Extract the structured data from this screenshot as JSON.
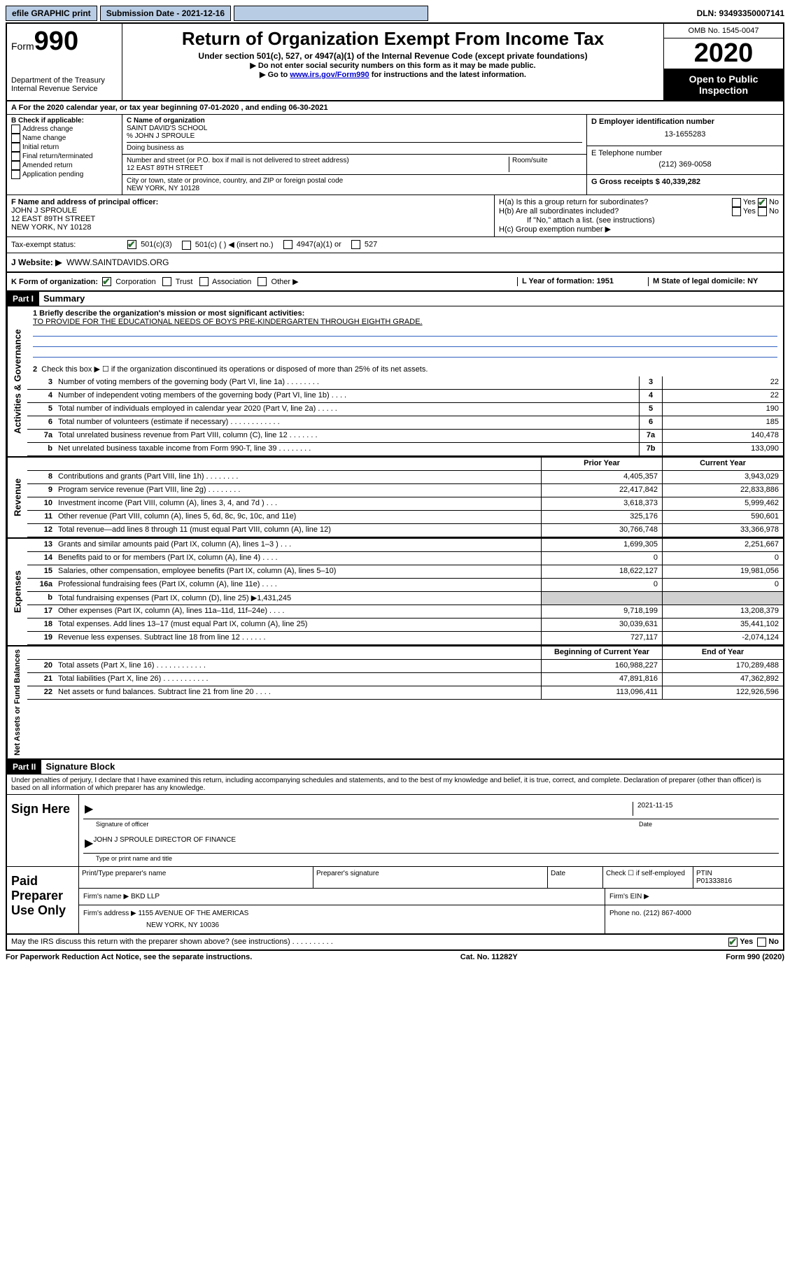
{
  "topbar": {
    "efile": "efile GRAPHIC print",
    "submission_label": "Submission Date - 2021-12-16",
    "dln": "DLN: 93493350007141"
  },
  "header": {
    "form_prefix": "Form",
    "form_number": "990",
    "dept": "Department of the Treasury",
    "irs": "Internal Revenue Service",
    "title": "Return of Organization Exempt From Income Tax",
    "subtitle": "Under section 501(c), 527, or 4947(a)(1) of the Internal Revenue Code (except private foundations)",
    "note1": "▶ Do not enter social security numbers on this form as it may be made public.",
    "note2_pre": "▶ Go to ",
    "note2_link": "www.irs.gov/Form990",
    "note2_post": " for instructions and the latest information.",
    "omb": "OMB No. 1545-0047",
    "year": "2020",
    "open": "Open to Public Inspection"
  },
  "row_a": "A For the 2020 calendar year, or tax year beginning 07-01-2020   , and ending 06-30-2021",
  "section_b": {
    "label": "B Check if applicable:",
    "addr": "Address change",
    "name": "Name change",
    "initial": "Initial return",
    "final": "Final return/terminated",
    "amended": "Amended return",
    "app": "Application pending"
  },
  "section_c": {
    "name_label": "C Name of organization",
    "name": "SAINT DAVID'S SCHOOL",
    "care_of": "% JOHN J SPROULE",
    "dba_label": "Doing business as",
    "street_label": "Number and street (or P.O. box if mail is not delivered to street address)",
    "room_label": "Room/suite",
    "street": "12 EAST 89TH STREET",
    "city_label": "City or town, state or province, country, and ZIP or foreign postal code",
    "city": "NEW YORK, NY  10128"
  },
  "section_d": {
    "ein_label": "D Employer identification number",
    "ein": "13-1655283",
    "phone_label": "E Telephone number",
    "phone": "(212) 369-0058",
    "gross_label": "G Gross receipts $ 40,339,282"
  },
  "section_f": {
    "label": "F  Name and address of principal officer:",
    "name": "JOHN J SPROULE",
    "street": "12 EAST 89TH STREET",
    "city": "NEW YORK, NY  10128"
  },
  "section_h": {
    "ha": "H(a)  Is this a group return for subordinates?",
    "hb": "H(b)  Are all subordinates included?",
    "hb_note": "If \"No,\" attach a list. (see instructions)",
    "hc": "H(c)  Group exemption number ▶",
    "yes": "Yes",
    "no": "No"
  },
  "tax_status": {
    "label": "Tax-exempt status:",
    "c3": "501(c)(3)",
    "c_other": "501(c) (  ) ◀ (insert no.)",
    "a1": "4947(a)(1) or",
    "s527": "527"
  },
  "row_j": {
    "label": "J   Website: ▶",
    "value": "WWW.SAINTDAVIDS.ORG"
  },
  "row_k": {
    "label": "K Form of organization:",
    "corp": "Corporation",
    "trust": "Trust",
    "assoc": "Association",
    "other": "Other ▶",
    "l_label": "L Year of formation: 1951",
    "m_label": "M State of legal domicile: NY"
  },
  "part1": {
    "header": "Part I",
    "title": "Summary",
    "q1": "1  Briefly describe the organization's mission or most significant activities:",
    "mission": "TO PROVIDE FOR THE EDUCATIONAL NEEDS OF BOYS PRE-KINDERGARTEN THROUGH EIGHTH GRADE.",
    "q2": "Check this box ▶ ☐  if the organization discontinued its operations or disposed of more than 25% of its net assets.",
    "side_gov": "Activities & Governance",
    "side_rev": "Revenue",
    "side_exp": "Expenses",
    "side_net": "Net Assets or Fund Balances",
    "lines_gov": [
      {
        "n": "3",
        "d": "Number of voting members of the governing body (Part VI, line 1a)  .   .   .   .   .   .   .   .",
        "b": "3",
        "v": "22"
      },
      {
        "n": "4",
        "d": "Number of independent voting members of the governing body (Part VI, line 1b)   .   .   .   .",
        "b": "4",
        "v": "22"
      },
      {
        "n": "5",
        "d": "Total number of individuals employed in calendar year 2020 (Part V, line 2a)  .   .   .   .   .",
        "b": "5",
        "v": "190"
      },
      {
        "n": "6",
        "d": "Total number of volunteers (estimate if necessary)  .   .   .   .   .   .   .   .   .   .   .   .",
        "b": "6",
        "v": "185"
      },
      {
        "n": "7a",
        "d": "Total unrelated business revenue from Part VIII, column (C), line 12  .   .   .   .   .   .   .",
        "b": "7a",
        "v": "140,478"
      },
      {
        "n": "b",
        "d": "Net unrelated business taxable income from Form 990-T, line 39   .   .   .   .   .   .   .   .",
        "b": "7b",
        "v": "133,090"
      }
    ],
    "hdr_prior": "Prior Year",
    "hdr_current": "Current Year",
    "lines_rev": [
      {
        "n": "8",
        "d": "Contributions and grants (Part VIII, line 1h)  .   .   .   .   .   .   .   .",
        "p": "4,405,357",
        "c": "3,943,029"
      },
      {
        "n": "9",
        "d": "Program service revenue (Part VIII, line 2g)   .   .   .   .   .   .   .   .",
        "p": "22,417,842",
        "c": "22,833,886"
      },
      {
        "n": "10",
        "d": "Investment income (Part VIII, column (A), lines 3, 4, and 7d )  .   .   .",
        "p": "3,618,373",
        "c": "5,999,462"
      },
      {
        "n": "11",
        "d": "Other revenue (Part VIII, column (A), lines 5, 6d, 8c, 9c, 10c, and 11e)",
        "p": "325,176",
        "c": "590,601"
      },
      {
        "n": "12",
        "d": "Total revenue—add lines 8 through 11 (must equal Part VIII, column (A), line 12)",
        "p": "30,766,748",
        "c": "33,366,978"
      }
    ],
    "lines_exp": [
      {
        "n": "13",
        "d": "Grants and similar amounts paid (Part IX, column (A), lines 1–3 )  .   .   .",
        "p": "1,699,305",
        "c": "2,251,667"
      },
      {
        "n": "14",
        "d": "Benefits paid to or for members (Part IX, column (A), line 4)  .   .   .   .",
        "p": "0",
        "c": "0"
      },
      {
        "n": "15",
        "d": "Salaries, other compensation, employee benefits (Part IX, column (A), lines 5–10)",
        "p": "18,622,127",
        "c": "19,981,056"
      },
      {
        "n": "16a",
        "d": "Professional fundraising fees (Part IX, column (A), line 11e)  .   .   .   .",
        "p": "0",
        "c": "0"
      },
      {
        "n": "b",
        "d": "Total fundraising expenses (Part IX, column (D), line 25) ▶1,431,245",
        "p": "",
        "c": "",
        "shade": true
      },
      {
        "n": "17",
        "d": "Other expenses (Part IX, column (A), lines 11a–11d, 11f–24e)  .   .   .   .",
        "p": "9,718,199",
        "c": "13,208,379"
      },
      {
        "n": "18",
        "d": "Total expenses. Add lines 13–17 (must equal Part IX, column (A), line 25)",
        "p": "30,039,631",
        "c": "35,441,102"
      },
      {
        "n": "19",
        "d": "Revenue less expenses. Subtract line 18 from line 12  .   .   .   .   .   .",
        "p": "727,117",
        "c": "-2,074,124"
      }
    ],
    "hdr_begin": "Beginning of Current Year",
    "hdr_end": "End of Year",
    "lines_net": [
      {
        "n": "20",
        "d": "Total assets (Part X, line 16)  .   .   .   .   .   .   .   .   .   .   .   .",
        "p": "160,988,227",
        "c": "170,289,488"
      },
      {
        "n": "21",
        "d": "Total liabilities (Part X, line 26)  .   .   .   .   .   .   .   .   .   .   .",
        "p": "47,891,816",
        "c": "47,362,892"
      },
      {
        "n": "22",
        "d": "Net assets or fund balances. Subtract line 21 from line 20  .   .   .   .",
        "p": "113,096,411",
        "c": "122,926,596"
      }
    ]
  },
  "part2": {
    "header": "Part II",
    "title": "Signature Block",
    "decl": "Under penalties of perjury, I declare that I have examined this return, including accompanying schedules and statements, and to the best of my knowledge and belief, it is true, correct, and complete. Declaration of preparer (other than officer) is based on all information of which preparer has any knowledge.",
    "sign_here": "Sign Here",
    "sig_officer": "Signature of officer",
    "date": "Date",
    "sig_date": "2021-11-15",
    "officer_name": "JOHN J SPROULE  DIRECTOR OF FINANCE",
    "type_name": "Type or print name and title",
    "paid_prep": "Paid Preparer Use Only",
    "prep_name_label": "Print/Type preparer's name",
    "prep_sig_label": "Preparer's signature",
    "date_label": "Date",
    "check_self": "Check ☐ if self-employed",
    "ptin_label": "PTIN",
    "ptin": "P01333816",
    "firm_name_label": "Firm's name    ▶",
    "firm_name": "BKD LLP",
    "firm_ein_label": "Firm's EIN ▶",
    "firm_addr_label": "Firm's address ▶",
    "firm_addr1": "1155 AVENUE OF THE AMERICAS",
    "firm_addr2": "NEW YORK, NY  10036",
    "firm_phone_label": "Phone no. (212) 867-4000",
    "may_discuss": "May the IRS discuss this return with the preparer shown above? (see instructions)   .   .   .   .   .   .   .   .   .   .",
    "paperwork": "For Paperwork Reduction Act Notice, see the separate instructions.",
    "catno": "Cat. No. 11282Y",
    "form_footer": "Form 990 (2020)"
  }
}
